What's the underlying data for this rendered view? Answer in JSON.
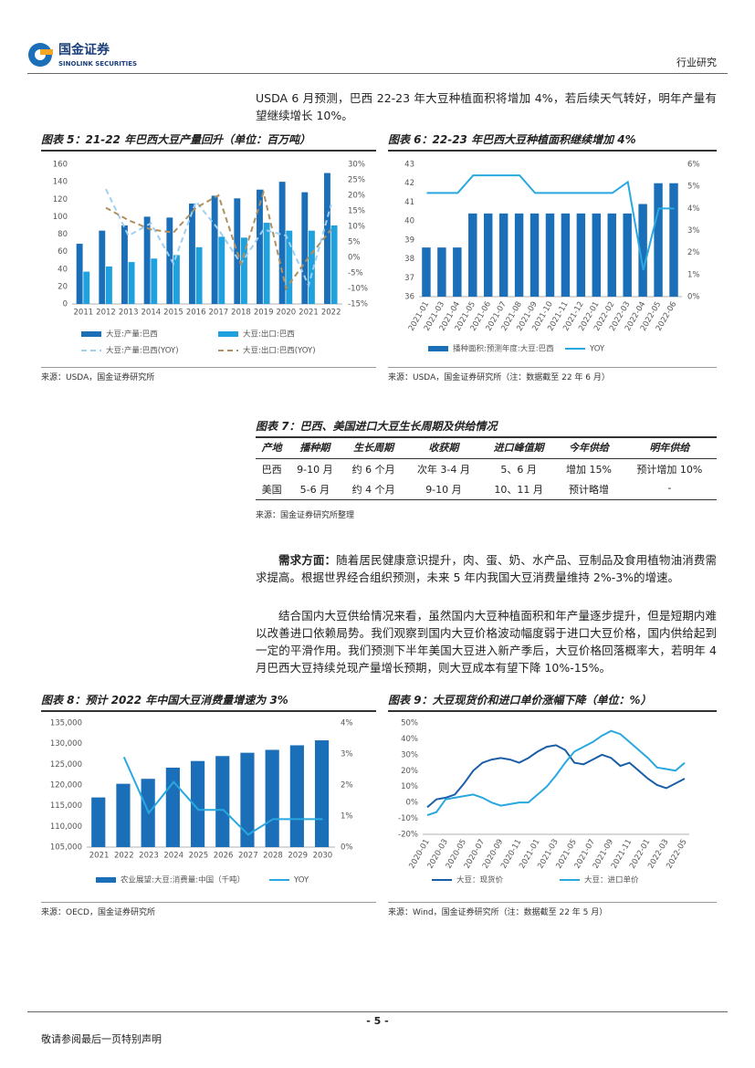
{
  "header": {
    "logo_cn": "国金证券",
    "logo_en": "SINOLINK SECURITIES",
    "section": "行业研究"
  },
  "intro": "USDA 6 月预测，巴西 22-23 年大豆种植面积将增加 4%，若后续天气转好，明年产量有望继续增长 10%。",
  "figures": [
    {
      "title": "图表 5：21-22 年巴西大豆产量回升（单位：百万吨）",
      "source": "来源：USDA，国金证券研究所",
      "chart": {
        "type": "combo",
        "categories": [
          "2011",
          "2012",
          "2013",
          "2014",
          "2015",
          "2016",
          "2017",
          "2018",
          "2019",
          "2020",
          "2021",
          "2022"
        ],
        "ylim": [
          0,
          160
        ],
        "yticks": [
          0,
          20,
          40,
          60,
          80,
          100,
          120,
          140,
          160
        ],
        "y2lim": [
          -15,
          30
        ],
        "y2ticks": [
          {
            "value": -15,
            "label": "-15%"
          },
          {
            "value": -10,
            "label": "-10%"
          },
          {
            "value": -5,
            "label": "-5%"
          },
          {
            "value": 0,
            "label": "0%"
          },
          {
            "value": 5,
            "label": "5%"
          },
          {
            "value": 10,
            "label": "10%"
          },
          {
            "value": 15,
            "label": "15%"
          },
          {
            "value": 20,
            "label": "20%"
          },
          {
            "value": 25,
            "label": "25%"
          },
          {
            "value": 30,
            "label": "30%"
          }
        ],
        "series": [
          {
            "name": "大豆:产量:巴西",
            "type": "bar",
            "color": "#1a6fb8",
            "values": [
              69,
              84,
              90,
              100,
              99,
              115,
              124,
              121,
              131,
              140,
              128,
              150
            ]
          },
          {
            "name": "大豆:出口:巴西",
            "type": "bar",
            "color": "#1ea1dc",
            "values": [
              37,
              43,
              48,
              52,
              56,
              65,
              77,
              76,
              93,
              84,
              84,
              90
            ]
          },
          {
            "name": "大豆:产量:巴西(YOY)",
            "type": "line",
            "axis": "y2",
            "dash": true,
            "color": "#9fd0f0",
            "values": [
              null,
              22,
              7,
              11,
              -2,
              18,
              9,
              -2,
              9,
              7,
              -9,
              17
            ]
          },
          {
            "name": "大豆:出口:巴西(YOY)",
            "type": "line",
            "axis": "y2",
            "dash": true,
            "color": "#b09060",
            "values": [
              null,
              16,
              12,
              9,
              8,
              16,
              20,
              -2,
              21,
              -10,
              0,
              9
            ]
          }
        ]
      }
    },
    {
      "title": "图表 6：22-23 年巴西大豆种植面积继续增加 4%",
      "source": "来源：USDA，国金证券研究所（注：数据截至 22 年 6 月）",
      "chart": {
        "type": "combo",
        "categories": [
          "2021-01",
          "2021-03",
          "2021-04",
          "2021-05",
          "2021-06",
          "2021-07",
          "2021-08",
          "2021-09",
          "2021-10",
          "2021-11",
          "2021-12",
          "2022-01",
          "2022-02",
          "2022-03",
          "2022-04",
          "2022-05",
          "2022-06"
        ],
        "ylim": [
          36,
          43
        ],
        "yticks": [
          36,
          37,
          38,
          39,
          40,
          41,
          42,
          43
        ],
        "y2lim": [
          0,
          6
        ],
        "y2ticks": [
          {
            "value": 0,
            "label": "0%"
          },
          {
            "value": 1,
            "label": "1%"
          },
          {
            "value": 2,
            "label": "2%"
          },
          {
            "value": 3,
            "label": "3%"
          },
          {
            "value": 4,
            "label": "4%"
          },
          {
            "value": 5,
            "label": "5%"
          },
          {
            "value": 6,
            "label": "6%"
          }
        ],
        "series": [
          {
            "name": "播种面积:预测年度:大豆:巴西",
            "type": "bar",
            "color": "#1a6fb8",
            "values": [
              38.6,
              38.6,
              38.6,
              40.4,
              40.4,
              40.4,
              40.4,
              40.4,
              40.4,
              40.4,
              40.4,
              40.4,
              40.4,
              40.4,
              40.9,
              42,
              42
            ]
          },
          {
            "name": "YOY",
            "type": "line",
            "axis": "y2",
            "color": "#29a8e0",
            "values": [
              4.7,
              4.7,
              4.7,
              5.5,
              5.5,
              5.5,
              5.5,
              4.7,
              4.7,
              4.7,
              4.7,
              4.7,
              4.7,
              5.2,
              1.2,
              4,
              4
            ]
          }
        ]
      }
    },
    {
      "title": "图表 7：巴西、美国进口大豆生长周期及供给情况",
      "source": "来源：国金证券研究所整理",
      "table": {
        "header": [
          "产地",
          "播种期",
          "生长周期",
          "收获期",
          "进口峰值期",
          "今年供给",
          "明年供给"
        ],
        "rows": [
          [
            "巴西",
            "9-10 月",
            "约 6 个月",
            "次年 3-4 月",
            "5、6 月",
            "增加 15%",
            "预计增加 10%"
          ],
          [
            "美国",
            "5-6 月",
            "约 4 个月",
            "9-10 月",
            "10、11 月",
            "预计略增",
            "-"
          ]
        ]
      }
    },
    {
      "title": "图表 8：预计 2022 年中国大豆消费量增速为 3%",
      "source": "来源：OECD，国金证券研究所",
      "chart": {
        "type": "combo",
        "categories": [
          "2021",
          "2022",
          "2023",
          "2024",
          "2025",
          "2026",
          "2027",
          "2028",
          "2029",
          "2030"
        ],
        "ylim": [
          105000,
          135000
        ],
        "yticks": [
          {
            "value": 105000,
            "label": "105,000"
          },
          {
            "value": 110000,
            "label": "110,000"
          },
          {
            "value": 115000,
            "label": "115,000"
          },
          {
            "value": 120000,
            "label": "120,000"
          },
          {
            "value": 125000,
            "label": "125,000"
          },
          {
            "value": 130000,
            "label": "130,000"
          },
          {
            "value": 135000,
            "label": "135,000"
          }
        ],
        "y2lim": [
          0,
          4
        ],
        "y2ticks": [
          {
            "value": 0,
            "label": "0%"
          },
          {
            "value": 1,
            "label": "1%"
          },
          {
            "value": 2,
            "label": "2%"
          },
          {
            "value": 3,
            "label": "3%"
          },
          {
            "value": 4,
            "label": "4%"
          }
        ],
        "series": [
          {
            "name": "农业展望:大豆:消费量:中国（千吨）",
            "type": "bar",
            "color": "#1a6fb8",
            "values": [
              117000,
              120300,
              121500,
              124200,
              125800,
              127000,
              127800,
              128500,
              129600,
              130800
            ]
          },
          {
            "name": "YOY",
            "type": "line",
            "axis": "y2",
            "color": "#29a8e0",
            "values": [
              null,
              2.9,
              1.1,
              2.1,
              1.2,
              1.2,
              0.4,
              0.9,
              0.9,
              0.9
            ]
          }
        ]
      }
    },
    {
      "title": "图表 9：大豆现货价和进口单价涨幅下降（单位：%）",
      "source": "来源：Wind，国金证券研究所（注：数据截至 22 年 5 月）",
      "chart": {
        "type": "line",
        "categories": [
          "2020-01",
          null,
          "2020-03",
          null,
          "2020-05",
          null,
          "2020-07",
          null,
          "2020-09",
          null,
          "2020-11",
          null,
          "2021-01",
          null,
          "2021-03",
          null,
          "2021-05",
          null,
          "2021-07",
          null,
          "2021-09",
          null,
          "2021-11",
          null,
          "2022-01",
          null,
          "2022-03",
          null,
          "2022-05"
        ],
        "ylim": [
          -20,
          50
        ],
        "yticks": [
          {
            "value": -20,
            "label": "-20%"
          },
          {
            "value": -10,
            "label": "-10%"
          },
          {
            "value": 0,
            "label": "0%"
          },
          {
            "value": 10,
            "label": "10%"
          },
          {
            "value": 20,
            "label": "20%"
          },
          {
            "value": 30,
            "label": "30%"
          },
          {
            "value": 40,
            "label": "40%"
          },
          {
            "value": 50,
            "label": "50%"
          }
        ],
        "series": [
          {
            "name": "大豆：现货价",
            "color": "#1a5ea8",
            "values": [
              -3,
              2,
              3,
              5,
              12,
              20,
              25,
              27,
              28,
              27,
              25,
              28,
              32,
              35,
              36,
              33,
              25,
              24,
              27,
              30,
              28,
              23,
              25,
              20,
              15,
              11,
              9,
              12,
              15
            ]
          },
          {
            "name": "大豆：进口单价",
            "color": "#29a8e0",
            "values": [
              -8,
              -6,
              2,
              3,
              4,
              5,
              3,
              0,
              -2,
              -1,
              0,
              0,
              5,
              10,
              17,
              25,
              32,
              35,
              38,
              42,
              45,
              43,
              38,
              33,
              28,
              22,
              21,
              20,
              25
            ]
          }
        ]
      }
    }
  ],
  "paragraphs": [
    {
      "lead": "需求方面：",
      "text": "随着居民健康意识提升，肉、蛋、奶、水产品、豆制品及食用植物油消费需求提高。根据世界经合组织预测，未来 5 年内我国大豆消费量维持 2%-3%的增速。"
    },
    {
      "text": "结合国内大豆供给情况来看，虽然国内大豆种植面积和年产量逐步提升，但是短期内难以改善进口依赖局势。我们观察到国内大豆价格波动幅度弱于进口大豆价格，国内供给起到一定的平滑作用。我们预测下半年美国大豆进入新产季后，大豆价格回落概率大，若明年 4 月巴西大豆持续兑现产量增长预期，则大豆成本有望下降 10%-15%。"
    }
  ],
  "footer": {
    "page": "- 5 -",
    "note": "敬请参阅最后一页特别声明"
  }
}
